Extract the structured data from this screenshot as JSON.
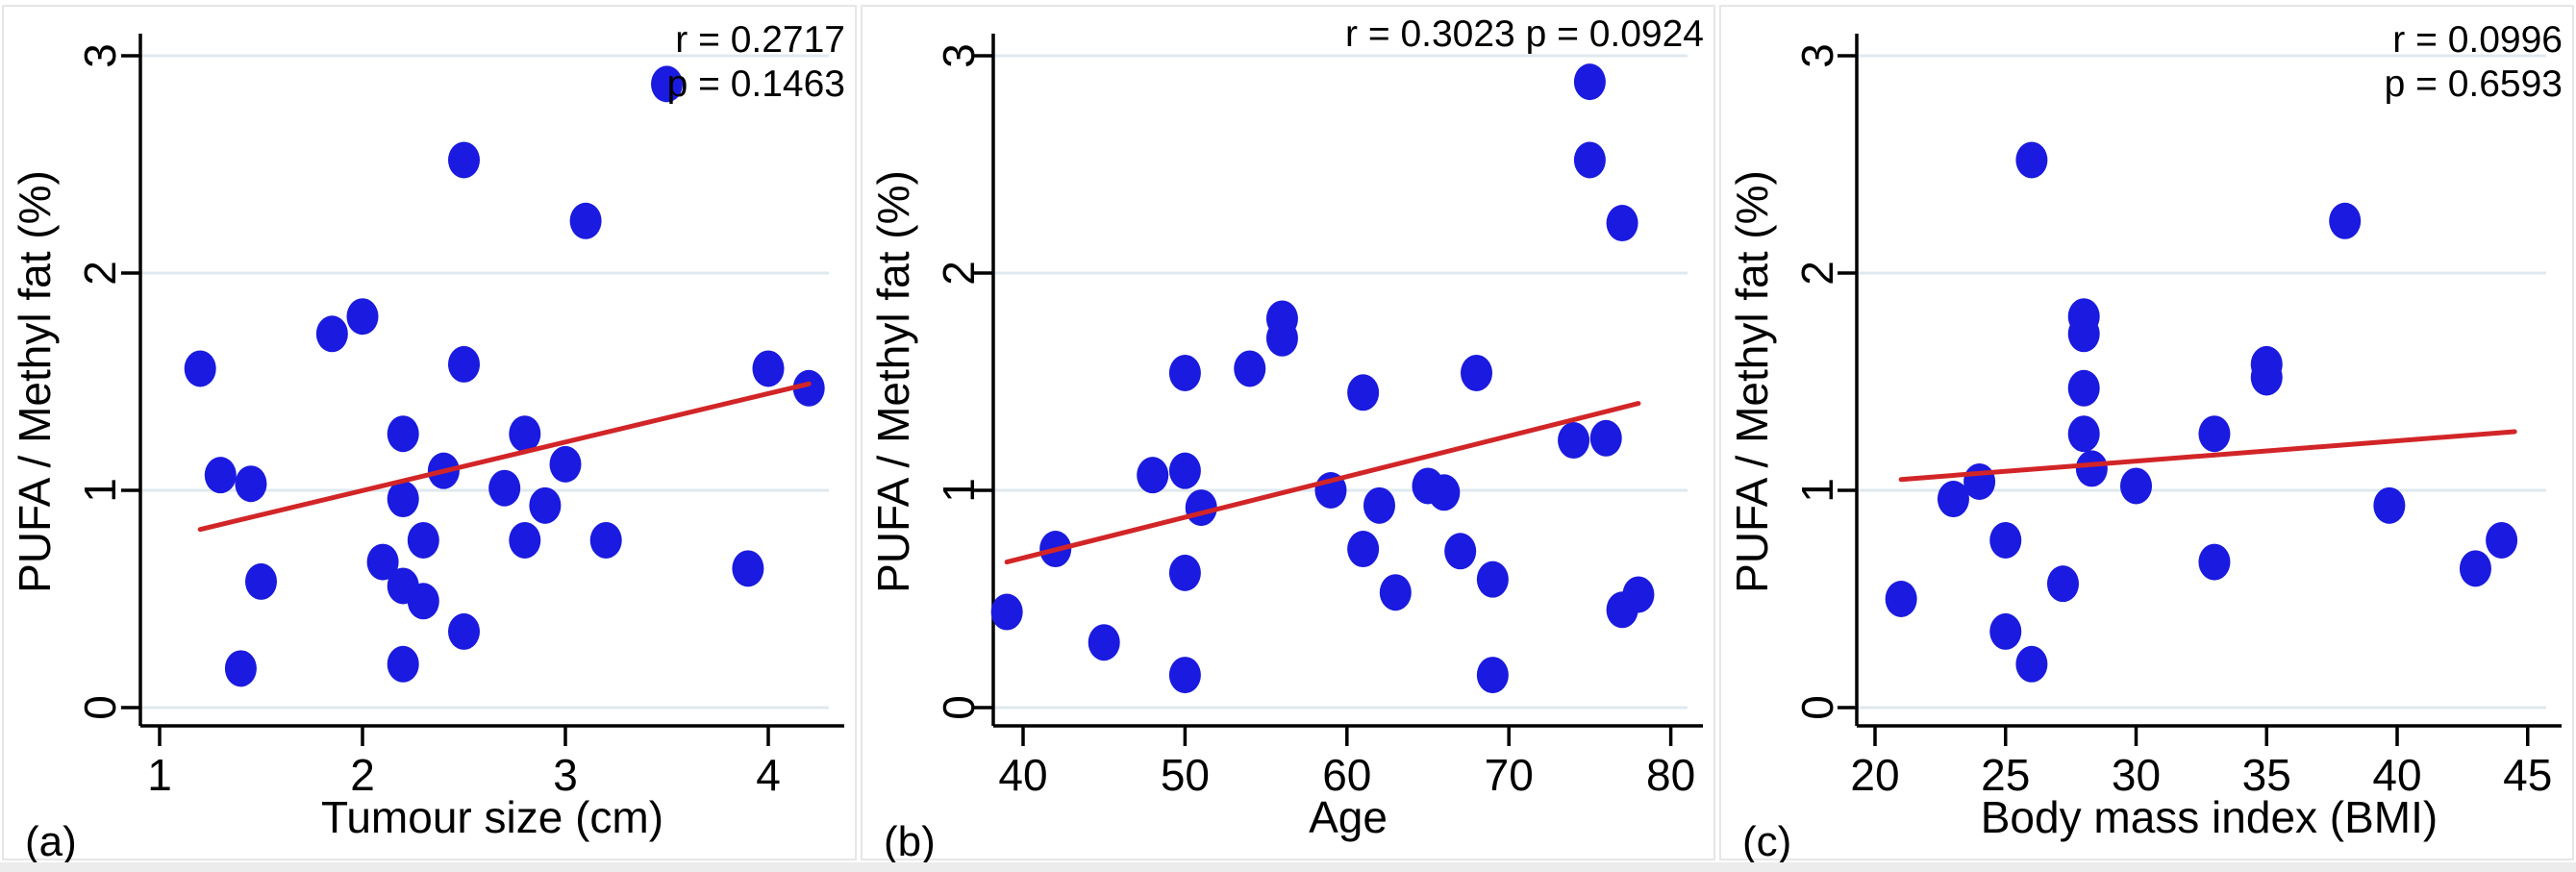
{
  "figure": {
    "panel_letters": [
      "(a)",
      "(b)",
      "(c)"
    ],
    "y_axis_label": "PUFA / Methyl fat (%)",
    "colors": {
      "dot": "#1a1ae0",
      "trend": "#d22527",
      "grid": "#dfe9ef",
      "axis": "#000000",
      "text": "#000000",
      "panel_border": "#e6e6e6",
      "footer_strip": "#ececec",
      "background": "#ffffff"
    }
  },
  "chart_data": [
    {
      "type": "scatter",
      "panel_letter": "(a)",
      "xlabel": "Tumour size (cm)",
      "ylabel": "PUFA / Methyl fat (%)",
      "x_ticks": [
        1,
        2,
        3,
        4
      ],
      "y_ticks": [
        0,
        1,
        2,
        3
      ],
      "xlim": [
        0.9,
        4.4
      ],
      "ylim": [
        0,
        3.1
      ],
      "legend_lines": [
        "r = 0.2717",
        "p = 0.1463"
      ],
      "r": 0.2717,
      "p": 0.1463,
      "grid": "horizontal",
      "legend_position": "top-right",
      "points": [
        [
          1.2,
          1.56
        ],
        [
          1.3,
          1.07
        ],
        [
          1.4,
          0.18
        ],
        [
          1.45,
          1.03
        ],
        [
          1.5,
          0.58
        ],
        [
          1.85,
          1.72
        ],
        [
          2.0,
          1.8
        ],
        [
          2.1,
          0.67
        ],
        [
          2.2,
          1.26
        ],
        [
          2.2,
          0.96
        ],
        [
          2.2,
          0.56
        ],
        [
          2.2,
          0.2
        ],
        [
          2.3,
          0.77
        ],
        [
          2.3,
          0.49
        ],
        [
          2.4,
          1.09
        ],
        [
          2.5,
          2.52
        ],
        [
          2.5,
          1.58
        ],
        [
          2.5,
          0.35
        ],
        [
          2.7,
          1.01
        ],
        [
          2.8,
          1.26
        ],
        [
          2.8,
          0.77
        ],
        [
          2.9,
          0.93
        ],
        [
          3.0,
          1.12
        ],
        [
          3.1,
          2.24
        ],
        [
          3.2,
          0.77
        ],
        [
          3.5,
          2.87
        ],
        [
          3.9,
          0.64
        ],
        [
          4.0,
          1.56
        ],
        [
          4.2,
          1.47
        ]
      ],
      "trend_line": {
        "x1": 1.2,
        "y1": 0.82,
        "x2": 4.2,
        "y2": 1.49
      }
    },
    {
      "type": "scatter",
      "panel_letter": "(b)",
      "xlabel": "Age",
      "ylabel": "PUFA / Methyl fat (%)",
      "x_ticks": [
        40,
        50,
        60,
        70,
        80
      ],
      "y_ticks": [
        0,
        1,
        2,
        3
      ],
      "xlim": [
        38,
        81
      ],
      "ylim": [
        0,
        3.1
      ],
      "legend_lines": [
        "r = 0.3023  p = 0.0924"
      ],
      "r": 0.3023,
      "p": 0.0924,
      "grid": "horizontal",
      "legend_position": "top-right",
      "points": [
        [
          39,
          0.44
        ],
        [
          42,
          0.73
        ],
        [
          45,
          0.3
        ],
        [
          48,
          1.07
        ],
        [
          50,
          1.54
        ],
        [
          50,
          1.09
        ],
        [
          50,
          0.62
        ],
        [
          50,
          0.15
        ],
        [
          51,
          0.92
        ],
        [
          54,
          1.56
        ],
        [
          56,
          1.79
        ],
        [
          56,
          1.7
        ],
        [
          59,
          1.0
        ],
        [
          61,
          1.45
        ],
        [
          61,
          0.73
        ],
        [
          62,
          0.93
        ],
        [
          63,
          0.53
        ],
        [
          65,
          1.02
        ],
        [
          66,
          0.99
        ],
        [
          67,
          0.72
        ],
        [
          68,
          1.54
        ],
        [
          69,
          0.59
        ],
        [
          69,
          0.15
        ],
        [
          74,
          1.23
        ],
        [
          75,
          2.88
        ],
        [
          75,
          2.52
        ],
        [
          76,
          1.24
        ],
        [
          77,
          2.23
        ],
        [
          77,
          0.45
        ],
        [
          78,
          0.52
        ]
      ],
      "trend_line": {
        "x1": 39,
        "y1": 0.67,
        "x2": 78,
        "y2": 1.4
      }
    },
    {
      "type": "scatter",
      "panel_letter": "(c)",
      "xlabel": "Body mass index (BMI)",
      "ylabel": "PUFA / Methyl fat (%)",
      "x_ticks": [
        20,
        25,
        30,
        35,
        40,
        45
      ],
      "y_ticks": [
        0,
        1,
        2,
        3
      ],
      "xlim": [
        19.2,
        45.8
      ],
      "ylim": [
        0,
        3.1
      ],
      "legend_lines": [
        "r = 0.0996",
        "p = 0.6593"
      ],
      "r": 0.0996,
      "p": 0.6593,
      "grid": "horizontal",
      "legend_position": "top-right",
      "points": [
        [
          21,
          0.5
        ],
        [
          23,
          0.96
        ],
        [
          24,
          1.04
        ],
        [
          25,
          0.77
        ],
        [
          25,
          0.35
        ],
        [
          26,
          2.52
        ],
        [
          26,
          0.2
        ],
        [
          27.2,
          0.57
        ],
        [
          28,
          1.8
        ],
        [
          28,
          1.72
        ],
        [
          28,
          1.47
        ],
        [
          28,
          1.26
        ],
        [
          28.3,
          1.1
        ],
        [
          30,
          1.02
        ],
        [
          33,
          1.26
        ],
        [
          33,
          0.67
        ],
        [
          35,
          1.58
        ],
        [
          35,
          1.52
        ],
        [
          38,
          2.24
        ],
        [
          39.7,
          0.93
        ],
        [
          43,
          0.64
        ],
        [
          44,
          0.77
        ]
      ],
      "trend_line": {
        "x1": 21,
        "y1": 1.05,
        "x2": 44.5,
        "y2": 1.27
      }
    }
  ]
}
